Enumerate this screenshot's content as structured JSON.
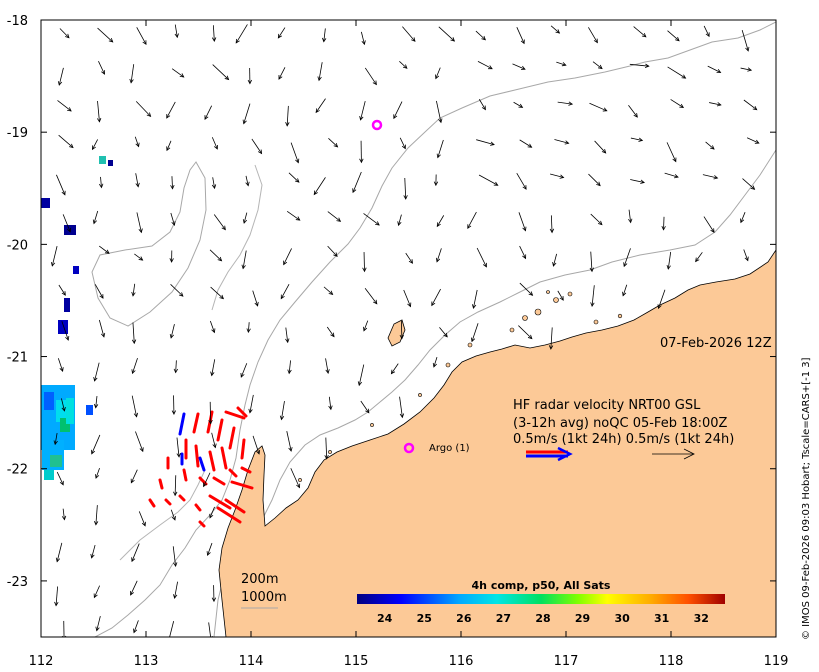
{
  "axes": {
    "lon_ticks": [
      "112",
      "113",
      "114",
      "115",
      "116",
      "117",
      "118",
      "119"
    ],
    "lat_ticks": [
      "-18",
      "-19",
      "-20",
      "-21",
      "-22",
      "-23"
    ],
    "lon_range": [
      112,
      119
    ],
    "lat_range": [
      -23.5,
      -18
    ]
  },
  "date_label": "07-Feb-2026 12Z",
  "legend": {
    "line1": "HF radar velocity  NRT00 GSL",
    "line2": "(3-12h avg) noQC 05-Feb 18:00Z",
    "line3": "0.5m/s (1kt 24h)  0.5m/s (1kt 24h)"
  },
  "argo": {
    "label": "Argo (1)",
    "count": 1
  },
  "isobaths": {
    "shallow": "200m",
    "deep": "1000m"
  },
  "colorbar": {
    "title": "4h comp, p50, All Sats",
    "ticks": [
      "24",
      "25",
      "26",
      "27",
      "28",
      "29",
      "30",
      "31",
      "32"
    ],
    "range": [
      23.3,
      32.6
    ]
  },
  "credit": "© IMOS 09-Feb-2026 09:03 Hobart; Tscale=CARS+[-1 3]",
  "colors": {
    "land": "#fcc997",
    "radar_red": "#ff0000",
    "radar_blue": "#0000ff",
    "argo": "#ff00ff"
  }
}
